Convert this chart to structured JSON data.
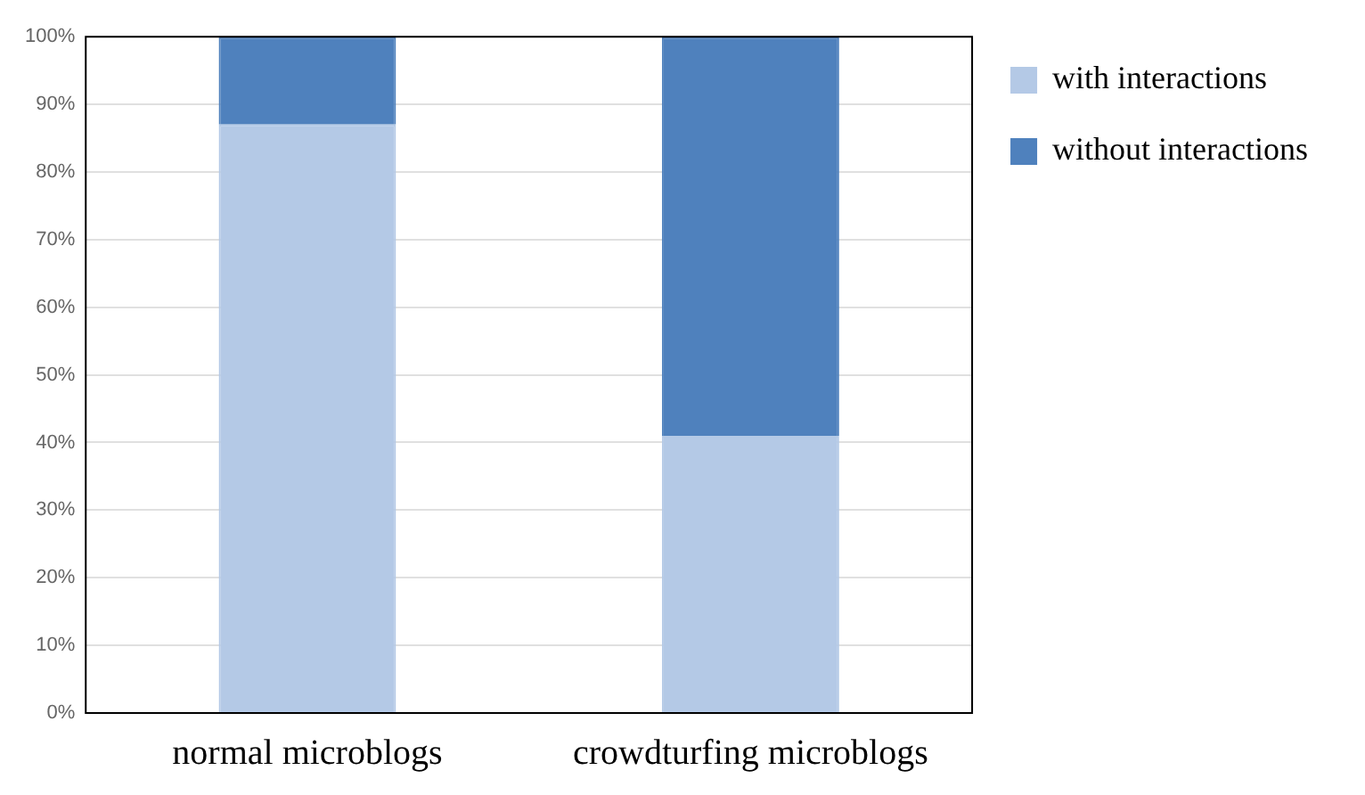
{
  "chart_data": {
    "type": "bar",
    "stacked": true,
    "categories": [
      "normal microblogs",
      "crowdturfing microblogs"
    ],
    "series": [
      {
        "name": "with interactions",
        "color": "#b4c9e6",
        "values": [
          87,
          41
        ]
      },
      {
        "name": "without interactions",
        "color": "#4f81bd",
        "values": [
          13,
          59
        ]
      }
    ],
    "ylim": [
      0,
      100
    ],
    "yticks": [
      {
        "value": 0,
        "label": "0%"
      },
      {
        "value": 10,
        "label": "10%"
      },
      {
        "value": 20,
        "label": "20%"
      },
      {
        "value": 30,
        "label": "30%"
      },
      {
        "value": 40,
        "label": "40%"
      },
      {
        "value": 50,
        "label": "50%"
      },
      {
        "value": 60,
        "label": "60%"
      },
      {
        "value": 70,
        "label": "70%"
      },
      {
        "value": 80,
        "label": "80%"
      },
      {
        "value": 90,
        "label": "90%"
      },
      {
        "value": 100,
        "label": "100%"
      }
    ],
    "grid": "y",
    "legend": "top right"
  }
}
